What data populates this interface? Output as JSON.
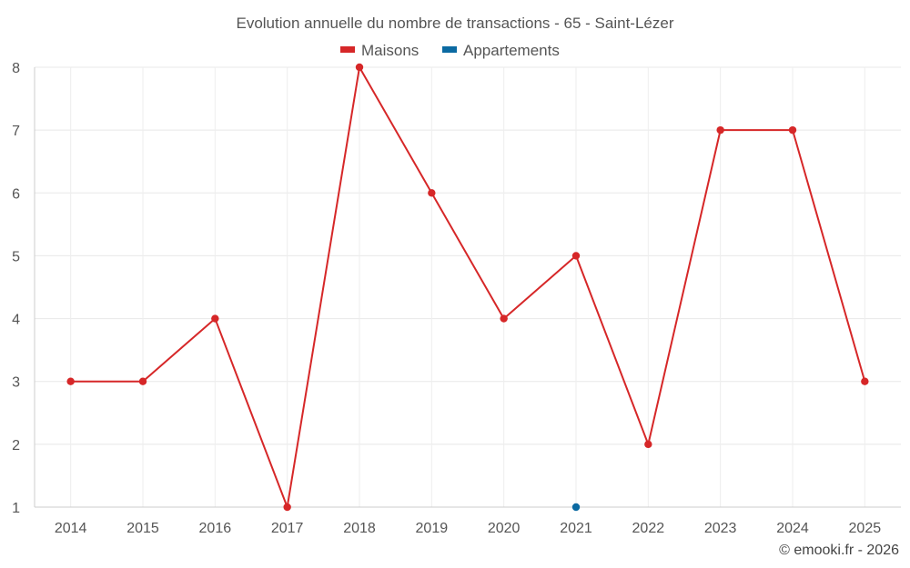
{
  "chart_data": {
    "type": "line",
    "title": "Evolution annuelle du nombre de transactions - 65 - Saint-Lézer",
    "categories": [
      "2014",
      "2015",
      "2016",
      "2017",
      "2018",
      "2019",
      "2020",
      "2021",
      "2022",
      "2023",
      "2024",
      "2025"
    ],
    "series": [
      {
        "name": "Maisons",
        "color": "#d62728",
        "values": [
          3,
          3,
          4,
          1,
          8,
          6,
          4,
          5,
          2,
          7,
          7,
          3
        ]
      },
      {
        "name": "Appartements",
        "color": "#0b6aa2",
        "values": [
          null,
          null,
          null,
          null,
          null,
          null,
          null,
          1,
          null,
          null,
          null,
          null
        ]
      }
    ],
    "ylim": [
      1,
      8
    ],
    "yticks": [
      1,
      2,
      3,
      4,
      5,
      6,
      7,
      8
    ],
    "grid": true,
    "legend_position": "top-center",
    "xlabel": "",
    "ylabel": ""
  },
  "credit": "© emooki.fr - 2026"
}
